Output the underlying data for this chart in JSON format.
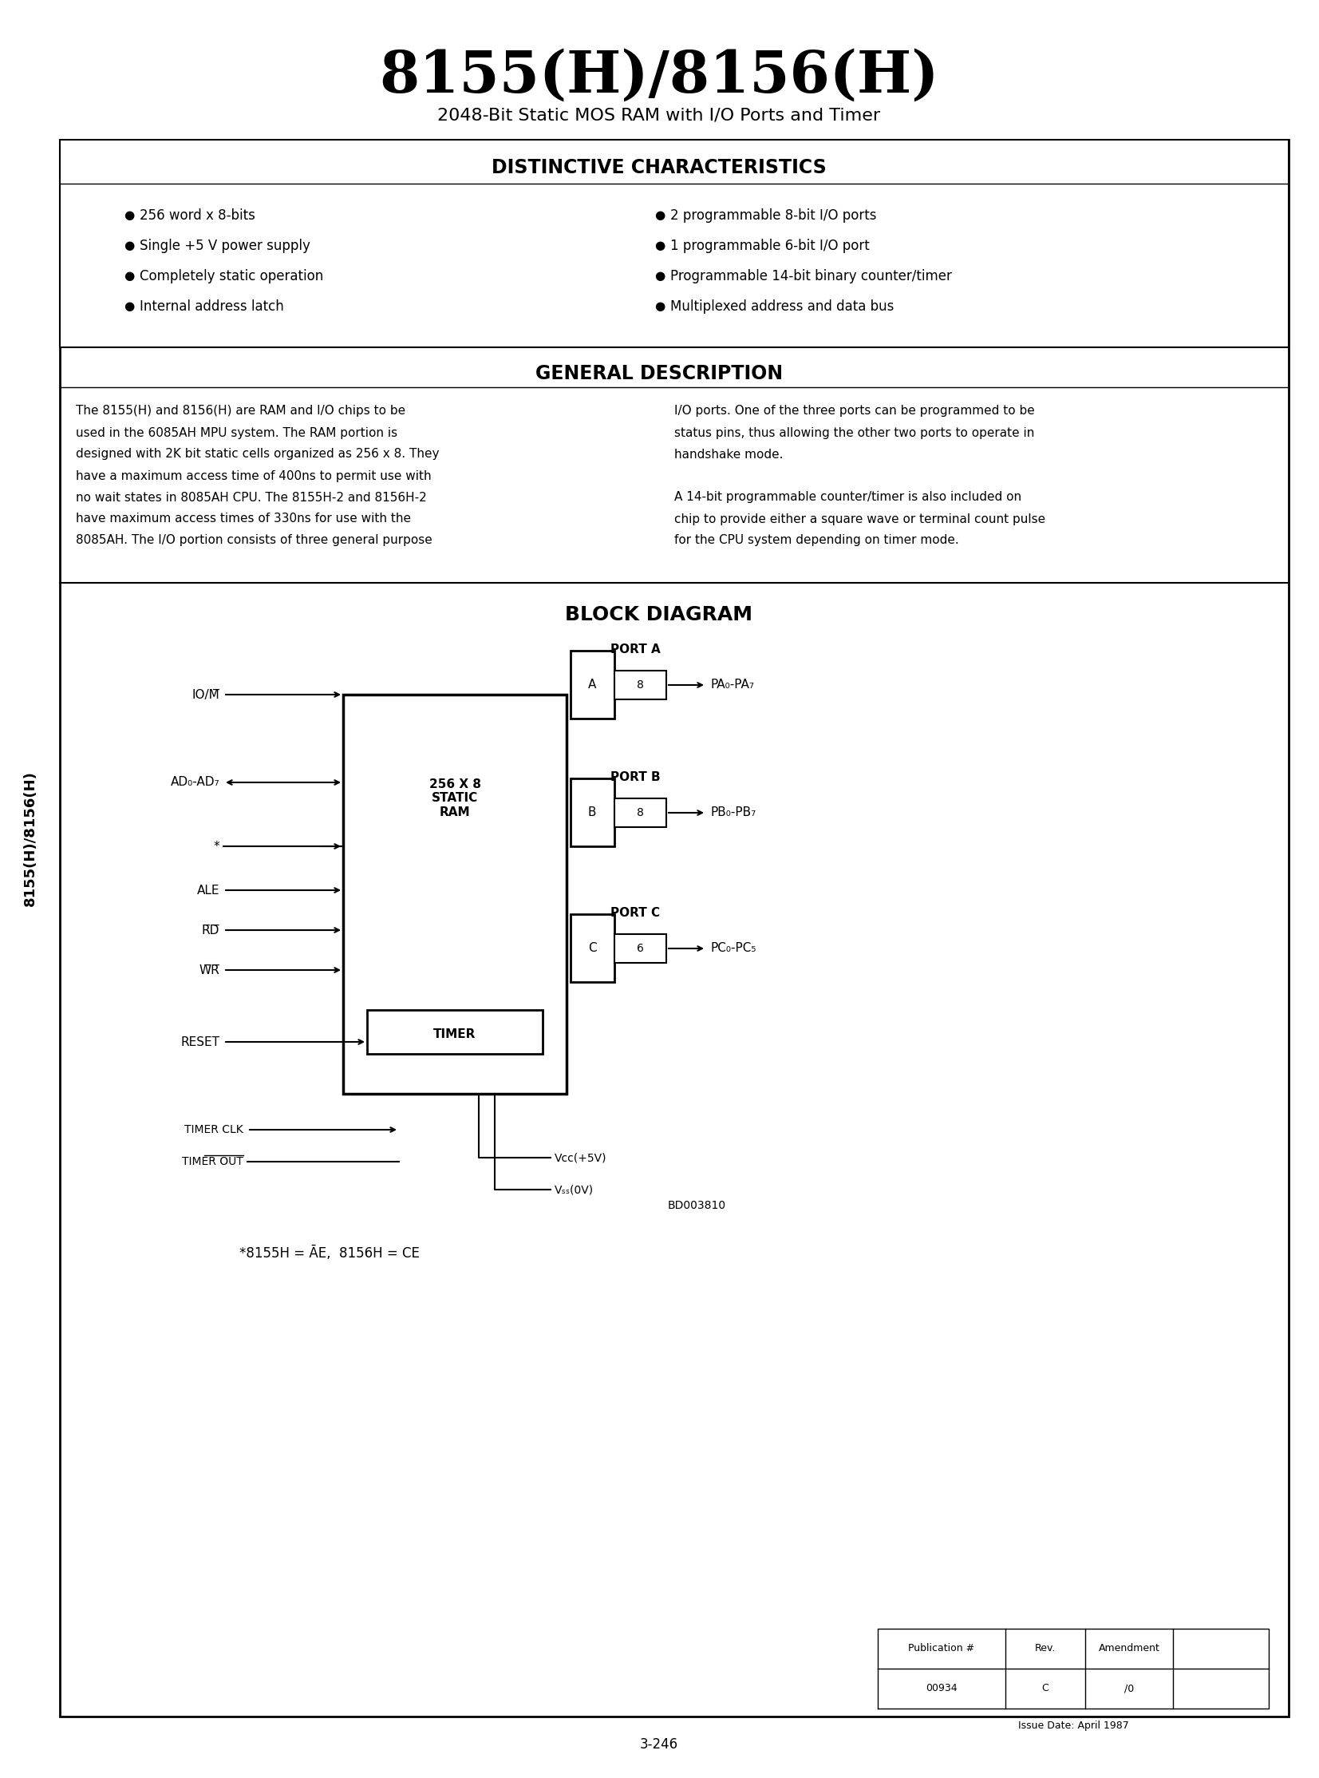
{
  "title": "8155(H)/8156(H)",
  "subtitle": "2048-Bit Static MOS RAM with I/O Ports and Timer",
  "page_bg": "#ffffff",
  "side_label": "8155(H)/8156(H)",
  "distinctive_title": "DISTINCTIVE CHARACTERISTICS",
  "char_left": [
    "256 word x 8-bits",
    "Single +5 V power supply",
    "Completely static operation",
    "Internal address latch"
  ],
  "char_right": [
    "2 programmable 8-bit I/O ports",
    "1 programmable 6-bit I/O port",
    "Programmable 14-bit binary counter/timer",
    "Multiplexed address and data bus"
  ],
  "general_title": "GENERAL DESCRIPTION",
  "general_left": "The 8155(H) and 8156(H) are RAM and I/O chips to be\nused in the 6085AH MPU system. The RAM portion is\ndesigned with 2K bit static cells organized as 256 x 8. They\nhave a maximum access time of 400ns to permit use with\nno wait states in 8085AH CPU. The 8155H-2 and 8156H-2\nhave maximum access times of 330ns for use with the\n8085AH. The I/O portion consists of three general purpose",
  "general_right": "I/O ports. One of the three ports can be programmed to be\nstatus pins, thus allowing the other two ports to operate in\nhandshake mode.\n\nA 14-bit programmable counter/timer is also included on\nchip to provide either a square wave or terminal count pulse\nfor the CPU system depending on timer mode.",
  "block_title": "BLOCK DIAGRAM",
  "footnote": "*8155H = ĀE,  8156H = CE",
  "bd_ref": "BD003810",
  "pub_num": "00934",
  "rev": "C",
  "amendment": "/0",
  "issue_date": "Issue Date: April 1987",
  "page_num": "3-246"
}
